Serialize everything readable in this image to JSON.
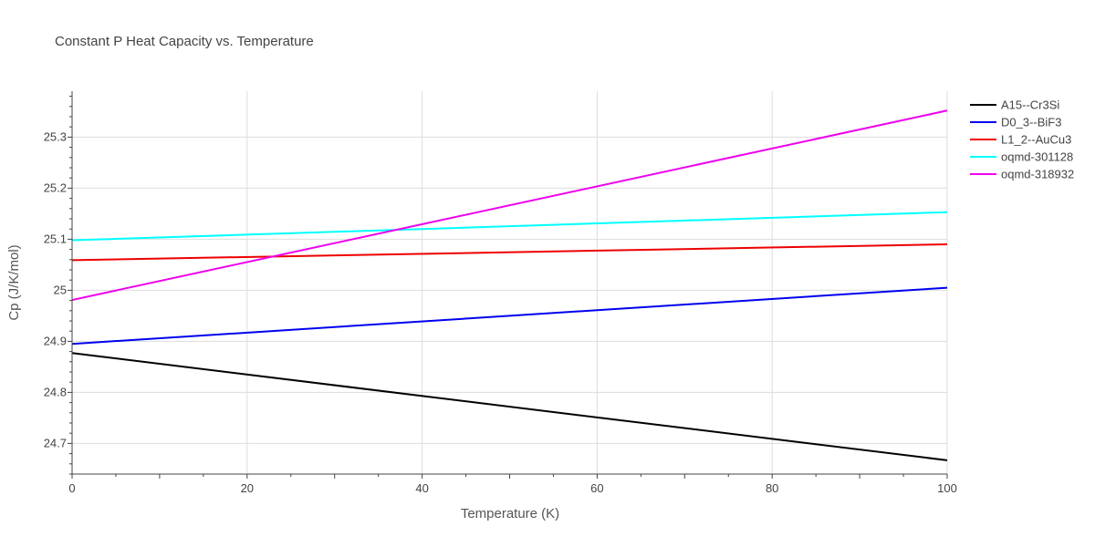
{
  "chart_data": {
    "type": "line",
    "title": "Constant P Heat Capacity vs. Temperature",
    "xlabel": "Temperature (K)",
    "ylabel": "Cp (J/K/mol)",
    "xlim": [
      0,
      100
    ],
    "ylim": [
      24.64,
      25.39
    ],
    "xticks": [
      0,
      20,
      40,
      60,
      80,
      100
    ],
    "xtick_labels": [
      "0",
      "20",
      "40",
      "60",
      "80",
      "100"
    ],
    "yticks": [
      24.7,
      24.8,
      24.9,
      25.0,
      25.1,
      25.2,
      25.3
    ],
    "ytick_labels": [
      "24.7",
      "24.8",
      "24.9",
      "25",
      "25.1",
      "25.2",
      "25.3"
    ],
    "grid": true,
    "legend_position": "top-right",
    "series": [
      {
        "name": "A15--Cr3Si",
        "color": "#000000",
        "x": [
          0,
          100
        ],
        "y": [
          24.877,
          24.667
        ]
      },
      {
        "name": "D0_3--BiF3",
        "color": "#0000ee",
        "x": [
          0,
          100
        ],
        "y": [
          24.895,
          25.005
        ]
      },
      {
        "name": "L1_2--AuCu3",
        "color": "#ee0000",
        "x": [
          0,
          100
        ],
        "y": [
          25.059,
          25.09
        ]
      },
      {
        "name": "oqmd-301128",
        "color": "#00ffff",
        "x": [
          0,
          100
        ],
        "y": [
          25.098,
          25.153
        ]
      },
      {
        "name": "oqmd-318932",
        "color": "#ee00ee",
        "x": [
          0,
          100
        ],
        "y": [
          24.981,
          25.352
        ]
      }
    ]
  }
}
